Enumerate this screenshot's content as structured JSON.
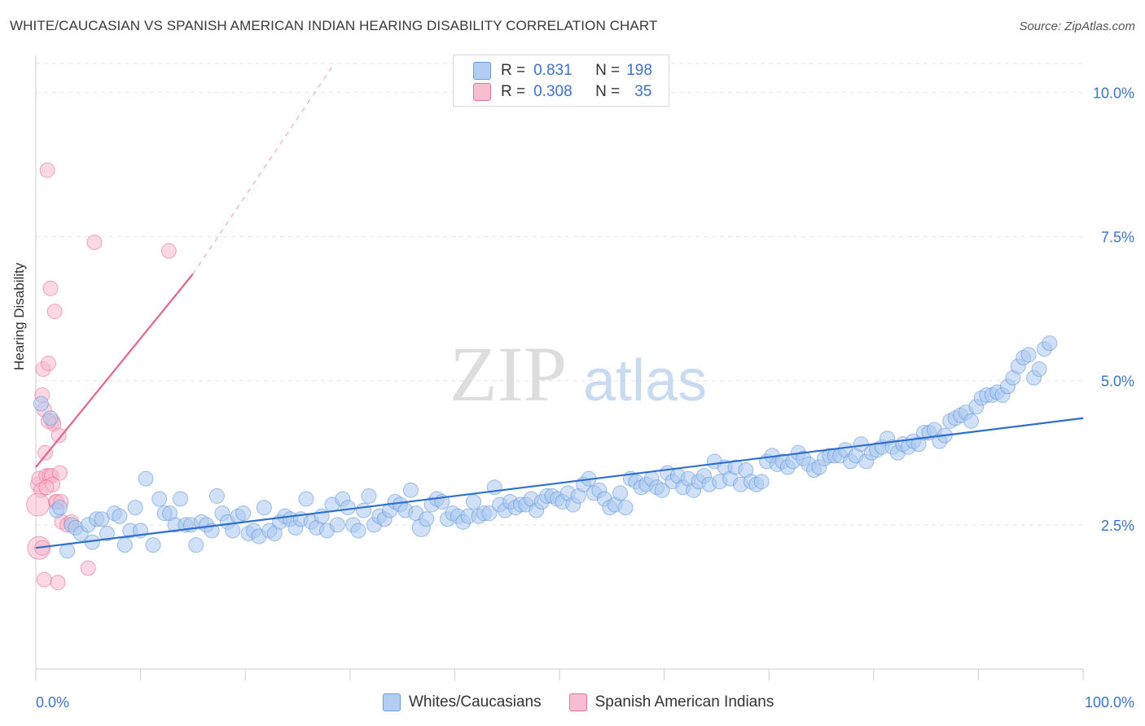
{
  "header": {
    "title": "WHITE/CAUCASIAN VS SPANISH AMERICAN INDIAN HEARING DISABILITY CORRELATION CHART",
    "source": "Source: ZipAtlas.com"
  },
  "watermark": {
    "zip": "ZIP",
    "atlas": "atlas"
  },
  "legend": {
    "rows": [
      {
        "r_label": "R =",
        "r_value": "0.831",
        "n_label": "N =",
        "n_value": "198",
        "color": "#aac8f0"
      },
      {
        "r_label": "R =",
        "r_value": "0.308",
        "n_label": "N =",
        "n_value": "35",
        "color": "#f7b8cc"
      }
    ]
  },
  "chart_data": {
    "type": "scatter",
    "title": "WHITE/CAUCASIAN VS SPANISH AMERICAN INDIAN HEARING DISABILITY CORRELATION CHART",
    "ylabel": "Hearing Disability",
    "xlabel": "",
    "xlim": [
      0,
      100
    ],
    "ylim": [
      0,
      10.5
    ],
    "x_tick_labels": [
      "0.0%",
      "100.0%"
    ],
    "y_ticks": [
      {
        "value": 2.5,
        "label": "2.5%"
      },
      {
        "value": 5.0,
        "label": "5.0%"
      },
      {
        "value": 7.5,
        "label": "7.5%"
      },
      {
        "value": 10.0,
        "label": "10.0%"
      }
    ],
    "grid": "horizontal dashed",
    "legend_position": "bottom",
    "series": [
      {
        "name": "Whites/Caucasians",
        "color": "#5b8fd6",
        "fill": "#aac8f0",
        "trend": {
          "x": [
            0,
            100
          ],
          "y": [
            2.1,
            4.35
          ]
        },
        "points": [
          [
            0.5,
            4.6
          ],
          [
            1.4,
            4.35
          ],
          [
            2,
            2.75
          ],
          [
            2.3,
            2.8
          ],
          [
            3,
            2.05
          ],
          [
            3.4,
            2.5
          ],
          [
            3.8,
            2.45
          ],
          [
            4.3,
            2.35
          ],
          [
            5,
            2.5
          ],
          [
            5.4,
            2.2
          ],
          [
            5.8,
            2.6
          ],
          [
            6.3,
            2.6
          ],
          [
            6.8,
            2.35
          ],
          [
            7.5,
            2.7
          ],
          [
            8,
            2.65
          ],
          [
            8.5,
            2.15
          ],
          [
            9,
            2.4
          ],
          [
            9.5,
            2.8
          ],
          [
            10,
            2.4
          ],
          [
            10.5,
            3.3
          ],
          [
            11.2,
            2.15
          ],
          [
            11.8,
            2.95
          ],
          [
            12.3,
            2.7
          ],
          [
            12.8,
            2.7
          ],
          [
            13.3,
            2.5
          ],
          [
            13.8,
            2.95
          ],
          [
            14.3,
            2.5
          ],
          [
            14.8,
            2.5
          ],
          [
            15.3,
            2.15
          ],
          [
            15.8,
            2.55
          ],
          [
            16.3,
            2.5
          ],
          [
            16.8,
            2.4
          ],
          [
            17.3,
            3.0
          ],
          [
            17.8,
            2.7
          ],
          [
            18.3,
            2.55
          ],
          [
            18.8,
            2.4
          ],
          [
            19.3,
            2.65
          ],
          [
            19.8,
            2.7
          ],
          [
            20.3,
            2.35
          ],
          [
            20.8,
            2.4
          ],
          [
            21.3,
            2.3
          ],
          [
            21.8,
            2.8
          ],
          [
            22.3,
            2.4
          ],
          [
            22.8,
            2.35
          ],
          [
            23.3,
            2.55
          ],
          [
            23.8,
            2.65
          ],
          [
            24.3,
            2.6
          ],
          [
            24.8,
            2.45
          ],
          [
            25.3,
            2.6
          ],
          [
            25.8,
            2.95
          ],
          [
            26.3,
            2.55
          ],
          [
            26.8,
            2.45
          ],
          [
            27.3,
            2.65
          ],
          [
            27.8,
            2.4
          ],
          [
            28.3,
            2.85
          ],
          [
            28.8,
            2.5
          ],
          [
            29.3,
            2.95
          ],
          [
            29.8,
            2.8
          ],
          [
            30.3,
            2.5
          ],
          [
            30.8,
            2.4
          ],
          [
            31.3,
            2.75
          ],
          [
            31.8,
            3.0
          ],
          [
            32.3,
            2.5
          ],
          [
            32.8,
            2.65
          ],
          [
            33.3,
            2.6
          ],
          [
            33.8,
            2.75
          ],
          [
            34.3,
            2.9
          ],
          [
            34.8,
            2.85
          ],
          [
            35.3,
            2.75
          ],
          [
            35.8,
            3.1
          ],
          [
            36.3,
            2.7
          ],
          [
            36.8,
            2.45
          ],
          [
            37.3,
            2.6
          ],
          [
            37.8,
            2.85
          ],
          [
            38.3,
            2.95
          ],
          [
            38.8,
            2.9
          ],
          [
            39.3,
            2.6
          ],
          [
            39.8,
            2.7
          ],
          [
            40.3,
            2.65
          ],
          [
            40.8,
            2.55
          ],
          [
            41.3,
            2.65
          ],
          [
            41.8,
            2.9
          ],
          [
            42.3,
            2.65
          ],
          [
            42.8,
            2.7
          ],
          [
            43.3,
            2.7
          ],
          [
            43.8,
            3.15
          ],
          [
            44.3,
            2.85
          ],
          [
            44.8,
            2.75
          ],
          [
            45.3,
            2.9
          ],
          [
            45.8,
            2.8
          ],
          [
            46.3,
            2.85
          ],
          [
            46.8,
            2.85
          ],
          [
            47.3,
            2.95
          ],
          [
            47.8,
            2.75
          ],
          [
            48.3,
            2.9
          ],
          [
            48.8,
            3.0
          ],
          [
            49.3,
            3.0
          ],
          [
            49.8,
            2.95
          ],
          [
            50.3,
            2.9
          ],
          [
            50.8,
            3.05
          ],
          [
            51.3,
            2.85
          ],
          [
            51.8,
            3.0
          ],
          [
            52.3,
            3.2
          ],
          [
            52.8,
            3.3
          ],
          [
            53.3,
            3.05
          ],
          [
            53.8,
            3.1
          ],
          [
            54.3,
            2.95
          ],
          [
            54.8,
            2.8
          ],
          [
            55.3,
            2.85
          ],
          [
            55.8,
            3.05
          ],
          [
            56.3,
            2.8
          ],
          [
            56.8,
            3.3
          ],
          [
            57.3,
            3.25
          ],
          [
            57.8,
            3.15
          ],
          [
            58.3,
            3.2
          ],
          [
            58.8,
            3.3
          ],
          [
            59.3,
            3.15
          ],
          [
            59.8,
            3.1
          ],
          [
            60.3,
            3.4
          ],
          [
            60.8,
            3.25
          ],
          [
            61.3,
            3.35
          ],
          [
            61.8,
            3.15
          ],
          [
            62.3,
            3.3
          ],
          [
            62.8,
            3.1
          ],
          [
            63.3,
            3.25
          ],
          [
            63.8,
            3.35
          ],
          [
            64.3,
            3.2
          ],
          [
            64.8,
            3.6
          ],
          [
            65.3,
            3.25
          ],
          [
            65.8,
            3.5
          ],
          [
            66.3,
            3.3
          ],
          [
            66.8,
            3.5
          ],
          [
            67.3,
            3.2
          ],
          [
            67.8,
            3.45
          ],
          [
            68.3,
            3.25
          ],
          [
            68.8,
            3.2
          ],
          [
            69.3,
            3.25
          ],
          [
            69.8,
            3.6
          ],
          [
            70.3,
            3.7
          ],
          [
            70.8,
            3.55
          ],
          [
            71.3,
            3.6
          ],
          [
            71.8,
            3.5
          ],
          [
            72.3,
            3.6
          ],
          [
            72.8,
            3.75
          ],
          [
            73.3,
            3.65
          ],
          [
            73.8,
            3.55
          ],
          [
            74.3,
            3.45
          ],
          [
            74.8,
            3.5
          ],
          [
            75.3,
            3.65
          ],
          [
            75.8,
            3.7
          ],
          [
            76.3,
            3.7
          ],
          [
            76.8,
            3.7
          ],
          [
            77.3,
            3.8
          ],
          [
            77.8,
            3.6
          ],
          [
            78.3,
            3.7
          ],
          [
            78.8,
            3.9
          ],
          [
            79.3,
            3.6
          ],
          [
            79.8,
            3.75
          ],
          [
            80.3,
            3.8
          ],
          [
            80.8,
            3.85
          ],
          [
            81.3,
            4.0
          ],
          [
            81.8,
            3.85
          ],
          [
            82.3,
            3.75
          ],
          [
            82.8,
            3.9
          ],
          [
            83.3,
            3.85
          ],
          [
            83.8,
            3.95
          ],
          [
            84.3,
            3.9
          ],
          [
            84.8,
            4.1
          ],
          [
            85.3,
            4.1
          ],
          [
            85.8,
            4.15
          ],
          [
            86.3,
            3.95
          ],
          [
            86.8,
            4.05
          ],
          [
            87.3,
            4.3
          ],
          [
            87.8,
            4.35
          ],
          [
            88.3,
            4.4
          ],
          [
            88.8,
            4.45
          ],
          [
            89.3,
            4.3
          ],
          [
            89.8,
            4.55
          ],
          [
            90.3,
            4.7
          ],
          [
            90.8,
            4.75
          ],
          [
            91.3,
            4.75
          ],
          [
            91.8,
            4.8
          ],
          [
            92.3,
            4.75
          ],
          [
            92.8,
            4.9
          ],
          [
            93.3,
            5.05
          ],
          [
            93.8,
            5.25
          ],
          [
            94.3,
            5.4
          ],
          [
            94.8,
            5.45
          ],
          [
            95.3,
            5.05
          ],
          [
            95.8,
            5.2
          ],
          [
            96.3,
            5.55
          ],
          [
            96.8,
            5.65
          ]
        ]
      },
      {
        "name": "Spanish American Indians",
        "color": "#e0668f",
        "fill": "#f7b8cc",
        "trend": {
          "x": [
            0,
            15
          ],
          "y": [
            3.5,
            6.85
          ]
        },
        "trend_dashed": {
          "x": [
            15,
            28.5
          ],
          "y": [
            6.85,
            10.5
          ]
        },
        "points": [
          [
            0.2,
            3.2
          ],
          [
            0.3,
            3.3
          ],
          [
            0.5,
            3.1
          ],
          [
            0.6,
            4.75
          ],
          [
            0.7,
            5.2
          ],
          [
            0.8,
            4.5
          ],
          [
            0.9,
            3.75
          ],
          [
            1.0,
            3.35
          ],
          [
            1.1,
            8.65
          ],
          [
            1.2,
            5.3
          ],
          [
            1.3,
            3.35
          ],
          [
            1.4,
            6.6
          ],
          [
            1.5,
            3.35
          ],
          [
            1.6,
            4.3
          ],
          [
            1.7,
            4.25
          ],
          [
            1.8,
            6.2
          ],
          [
            1.9,
            2.9
          ],
          [
            2.0,
            2.9
          ],
          [
            2.1,
            1.5
          ],
          [
            2.2,
            4.05
          ],
          [
            2.3,
            3.4
          ],
          [
            2.4,
            2.9
          ],
          [
            0.3,
            2.1
          ],
          [
            0.6,
            2.1
          ],
          [
            0.8,
            1.55
          ],
          [
            1.2,
            4.3
          ],
          [
            1.6,
            3.2
          ],
          [
            2.5,
            2.55
          ],
          [
            3.0,
            2.5
          ],
          [
            3.4,
            2.55
          ],
          [
            5.0,
            1.75
          ],
          [
            5.6,
            7.4
          ],
          [
            12.7,
            7.25
          ],
          [
            1.0,
            3.15
          ],
          [
            0.2,
            2.85
          ]
        ]
      }
    ]
  }
}
